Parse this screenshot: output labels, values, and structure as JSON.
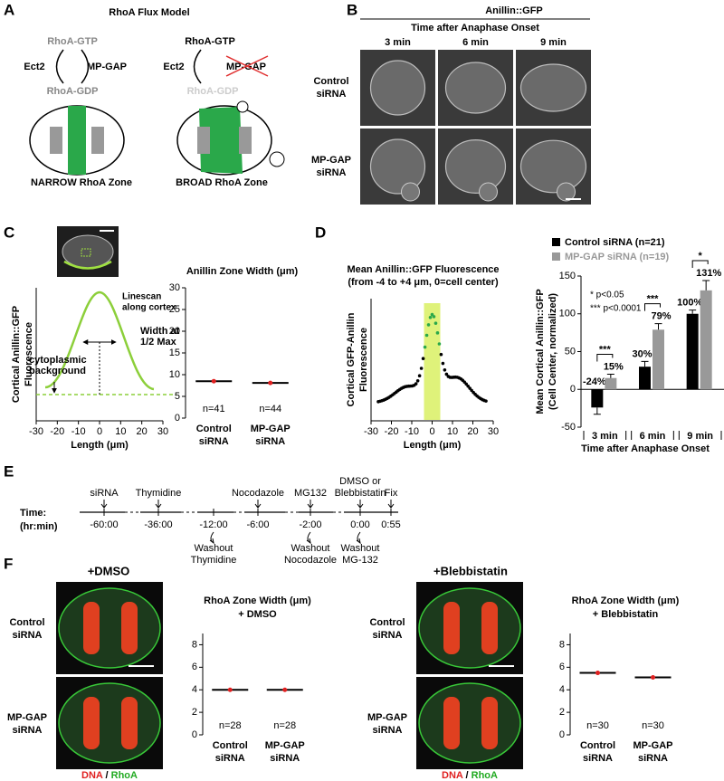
{
  "figure": {
    "A": {
      "label": "A",
      "title": "RhoA Flux Model",
      "narrow": {
        "gtp": "RhoA-GTP",
        "gef": "Ect2",
        "gap": "MP-GAP",
        "gdp": "RhoA-GDP",
        "zone": "NARROW RhoA Zone"
      },
      "broad": {
        "gtp": "RhoA-GTP",
        "gef": "Ect2",
        "gap": "MP-GAP",
        "gdp": "RhoA-GDP",
        "zone": "BROAD RhoA Zone"
      }
    },
    "B": {
      "label": "B",
      "title": "Anillin::GFP",
      "subtitle": "Time after Anaphase Onset",
      "columns": [
        "3 min",
        "6 min",
        "9 min"
      ],
      "rows": [
        [
          "Control",
          "siRNA"
        ],
        [
          "MP-GAP",
          "siRNA"
        ]
      ]
    },
    "C": {
      "label": "C"
    },
    "D": {
      "label": "D"
    },
    "E": {
      "label": "E",
      "axis": [
        "Time:",
        "(hr:min)"
      ],
      "events": [
        {
          "time": "-60:00",
          "above": [
            "siRNA"
          ]
        },
        {
          "time": "-36:00",
          "above": [
            "Thymidine"
          ]
        },
        {
          "time": "-12:00",
          "below": [
            "Washout",
            "Thymidine"
          ]
        },
        {
          "time": "-6:00",
          "above": [
            "Nocodazole"
          ]
        },
        {
          "time": "-2:00",
          "above": [
            "MG132"
          ],
          "below": [
            "Washout",
            "Nocodazole"
          ]
        },
        {
          "time": "0:00",
          "above": [
            "DMSO or",
            "Blebbistatin"
          ],
          "below": [
            "Washout",
            "MG-132"
          ]
        },
        {
          "time": "0:55",
          "above": [
            "Fix"
          ]
        }
      ]
    },
    "F": {
      "label": "F",
      "conditions": [
        "+DMSO",
        "+Blebbistatin"
      ],
      "rows": [
        [
          "Control",
          "siRNA"
        ],
        [
          "MP-GAP",
          "siRNA"
        ]
      ],
      "stain": [
        "DNA",
        "/",
        "RhoA"
      ]
    }
  },
  "chart_data": [
    {
      "type": "line",
      "ylabel": [
        "Cortical Anillin::GFP",
        "Fluorescence"
      ],
      "xlabel": "Length (μm)",
      "xlim": [
        -30,
        30
      ],
      "xticks": [
        -30,
        -20,
        -10,
        0,
        10,
        20,
        30
      ],
      "annotations": [
        [
          "Linescan",
          "along cortex"
        ],
        [
          "Width at",
          "1/2 Max"
        ],
        [
          "cytoplasmic",
          "background"
        ]
      ]
    },
    {
      "type": "scatter",
      "title": "Anillin Zone Width (μm)",
      "categories": [
        [
          "Control",
          "siRNA"
        ],
        [
          "MP-GAP",
          "siRNA"
        ]
      ],
      "n_labels": [
        "n=41",
        "n=44"
      ],
      "means": [
        8.5,
        8.1
      ],
      "ylim": [
        0,
        30
      ],
      "yticks": [
        0,
        5,
        10,
        15,
        20,
        25,
        30
      ]
    },
    {
      "type": "line",
      "title": [
        "Mean Anillin::GFP Fluorescence",
        "(from -4 to +4 μm, 0=cell center)"
      ],
      "ylabel": [
        "Cortical GFP-Anillin",
        "Fluorescence"
      ],
      "xlabel": "Length (μm)",
      "xlim": [
        -30,
        30
      ],
      "xticks": [
        -30,
        -20,
        -10,
        0,
        10,
        20,
        30
      ]
    },
    {
      "type": "bar",
      "categories": [
        "3 min",
        "6 min",
        "9 min"
      ],
      "xlabel": "Time after Anaphase Onset",
      "ylabel": [
        "Mean Cortical  Anillin::GFP",
        "(Cell Center, normalized)"
      ],
      "ylim": [
        -50,
        150
      ],
      "yticks": [
        -50,
        0,
        50,
        100,
        150
      ],
      "series": [
        {
          "name": "Control siRNA (n=21)",
          "color": "#000000",
          "values": [
            -24,
            30,
            100
          ],
          "errors": [
            9,
            7,
            5
          ],
          "value_labels": [
            "-24%",
            "30%",
            "100%"
          ]
        },
        {
          "name": "MP-GAP siRNA (n=19)",
          "color": "#999999",
          "values": [
            15,
            79,
            131
          ],
          "errors": [
            5,
            8,
            13
          ],
          "value_labels": [
            "15%",
            "79%",
            "131%"
          ]
        }
      ],
      "significance": [
        "***",
        "***",
        "*"
      ],
      "notes": [
        "*  p<0.05",
        "*** p<0.0001"
      ]
    },
    {
      "type": "scatter",
      "title": [
        "RhoA Zone Width (μm)",
        "+ DMSO"
      ],
      "categories": [
        [
          "Control",
          "siRNA"
        ],
        [
          "MP-GAP",
          "siRNA"
        ]
      ],
      "n_labels": [
        "n=28",
        "n=28"
      ],
      "means": [
        4.0,
        4.0
      ],
      "ylim": [
        0,
        9
      ],
      "yticks": [
        0,
        2,
        4,
        6,
        8
      ]
    },
    {
      "type": "scatter",
      "title": [
        "RhoA Zone Width (μm)",
        "+ Blebbistatin"
      ],
      "categories": [
        [
          "Control",
          "siRNA"
        ],
        [
          "MP-GAP",
          "siRNA"
        ]
      ],
      "n_labels": [
        "n=30",
        "n=30"
      ],
      "means": [
        5.5,
        5.1
      ],
      "ylim": [
        0,
        9
      ],
      "yticks": [
        0,
        2,
        4,
        6,
        8
      ]
    }
  ]
}
